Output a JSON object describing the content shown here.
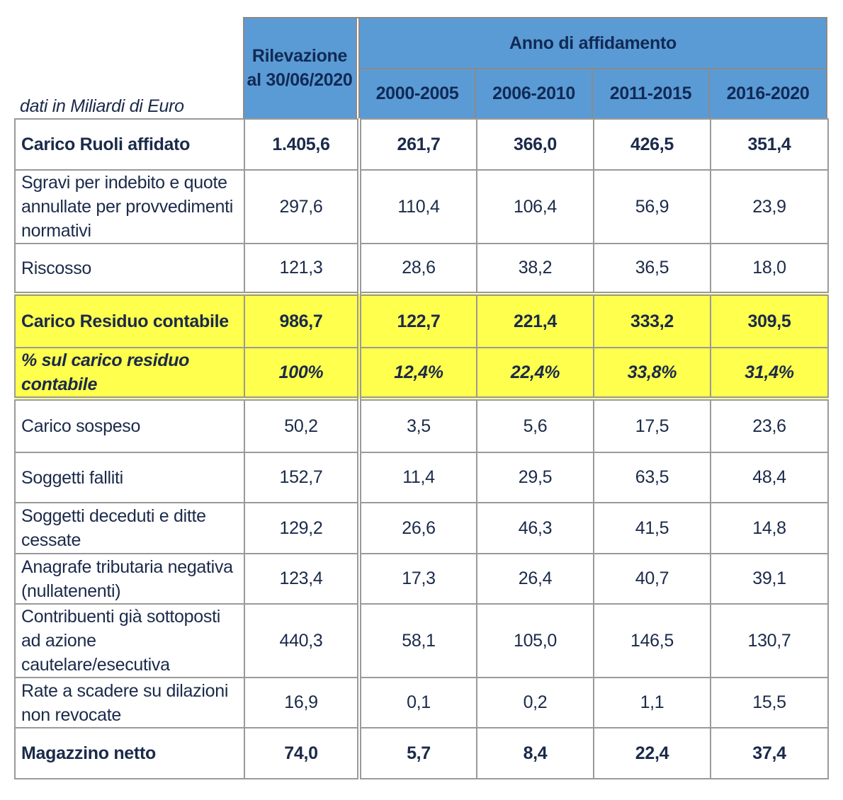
{
  "note": "dati in Miliardi di Euro",
  "header": {
    "rilevazione": "Rilevazione al 30/06/2020",
    "anno": "Anno di affidamento",
    "periods": [
      "2000-2005",
      "2006-2010",
      "2011-2015",
      "2016-2020"
    ]
  },
  "rows": [
    {
      "label": "Carico Ruoli affidato",
      "values": [
        "1.405,6",
        "261,7",
        "366,0",
        "426,5",
        "351,4"
      ]
    },
    {
      "label": "Sgravi per indebito e quote annullate per provvedimenti normativi",
      "values": [
        "297,6",
        "110,4",
        "106,4",
        "56,9",
        "23,9"
      ]
    },
    {
      "label": "Riscosso",
      "values": [
        "121,3",
        "28,6",
        "38,2",
        "36,5",
        "18,0"
      ]
    },
    {
      "label": "Carico Residuo contabile",
      "values": [
        "986,7",
        "122,7",
        "221,4",
        "333,2",
        "309,5"
      ]
    },
    {
      "label": "% sul carico residuo contabile",
      "values": [
        "100%",
        "12,4%",
        "22,4%",
        "33,8%",
        "31,4%"
      ]
    },
    {
      "label": "Carico sospeso",
      "values": [
        "50,2",
        "3,5",
        "5,6",
        "17,5",
        "23,6"
      ]
    },
    {
      "label": "Soggetti falliti",
      "values": [
        "152,7",
        "11,4",
        "29,5",
        "63,5",
        "48,4"
      ]
    },
    {
      "label": "Soggetti deceduti e ditte cessate",
      "values": [
        "129,2",
        "26,6",
        "46,3",
        "41,5",
        "14,8"
      ]
    },
    {
      "label": "Anagrafe tributaria negativa (nullatenenti)",
      "values": [
        "123,4",
        "17,3",
        "26,4",
        "40,7",
        "39,1"
      ]
    },
    {
      "label": "Contribuenti già sottoposti ad azione cautelare/esecutiva",
      "values": [
        "440,3",
        "58,1",
        "105,0",
        "146,5",
        "130,7"
      ]
    },
    {
      "label": "Rate a scadere su dilazioni non revocate",
      "values": [
        "16,9",
        "0,1",
        "0,2",
        "1,1",
        "15,5"
      ]
    },
    {
      "label": "Magazzino netto",
      "values": [
        "74,0",
        "5,7",
        "8,4",
        "22,4",
        "37,4"
      ]
    }
  ],
  "colors": {
    "header_blue": "#5b9bd5",
    "highlight_yellow": "#ffff4d"
  }
}
